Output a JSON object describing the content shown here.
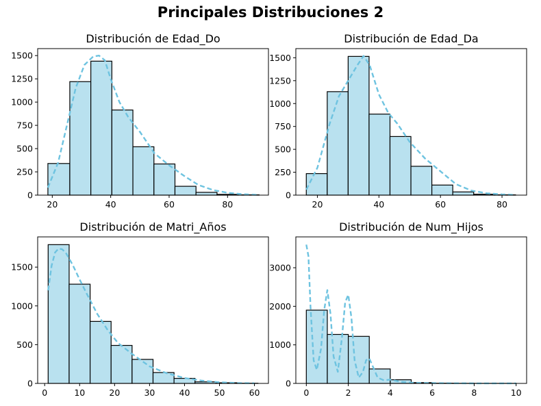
{
  "figure": {
    "title": "Principales Distribuciones 2"
  },
  "style": {
    "bar_fill": "#b9e1ef",
    "bar_edge": "#000000",
    "kde_color": "#6ec3e0"
  },
  "chart_data": [
    {
      "type": "bar",
      "title": "Distribución de Edad_Do",
      "xlabel": "",
      "ylabel": "",
      "bin_edges": [
        18.5,
        26.0,
        33.2,
        40.4,
        47.6,
        54.8,
        62.0,
        69.2,
        76.4,
        83.6,
        90.8
      ],
      "values": [
        340,
        1220,
        1440,
        915,
        520,
        335,
        95,
        30,
        8,
        3
      ],
      "xlim": [
        15,
        94
      ],
      "ylim": [
        0,
        1575
      ],
      "xticks": [
        20,
        40,
        60,
        80
      ],
      "yticks": [
        0,
        250,
        500,
        750,
        1000,
        1250,
        1500
      ],
      "kde": {
        "x": [
          18.5,
          22,
          25,
          28,
          31,
          34,
          36,
          38,
          40,
          43,
          46,
          50,
          55,
          60,
          65,
          70,
          75,
          80,
          85,
          90
        ],
        "y": [
          80,
          350,
          750,
          1150,
          1400,
          1490,
          1500,
          1450,
          1250,
          1000,
          840,
          680,
          450,
          320,
          210,
          110,
          55,
          25,
          10,
          3
        ]
      }
    },
    {
      "type": "bar",
      "title": "Distribución de Edad_Da",
      "xlabel": "",
      "ylabel": "",
      "bin_edges": [
        16.4,
        23.2,
        30.0,
        36.8,
        43.6,
        50.4,
        57.2,
        64.0,
        70.8,
        77.6,
        84.4
      ],
      "values": [
        235,
        1130,
        1515,
        885,
        640,
        315,
        110,
        35,
        10,
        3
      ],
      "xlim": [
        13,
        88
      ],
      "ylim": [
        0,
        1600
      ],
      "xticks": [
        20,
        40,
        60,
        80
      ],
      "yticks": [
        0,
        250,
        500,
        750,
        1000,
        1250,
        1500
      ],
      "kde": {
        "x": [
          16.4,
          20,
          24,
          27,
          30,
          33,
          35,
          37,
          40,
          43,
          46,
          50,
          55,
          60,
          65,
          70,
          75,
          80,
          84
        ],
        "y": [
          60,
          300,
          780,
          1080,
          1250,
          1420,
          1520,
          1420,
          1100,
          900,
          780,
          580,
          400,
          260,
          120,
          50,
          20,
          8,
          3
        ]
      }
    },
    {
      "type": "bar",
      "title": "Distribución de Matri_Años",
      "xlabel": "",
      "ylabel": "",
      "bin_edges": [
        1,
        7,
        13,
        19,
        25,
        31,
        37,
        43,
        49,
        55,
        61
      ],
      "values": [
        1790,
        1280,
        800,
        490,
        310,
        140,
        65,
        20,
        8,
        2
      ],
      "xlim": [
        -2,
        64
      ],
      "ylim": [
        0,
        1890
      ],
      "xticks": [
        0,
        10,
        20,
        30,
        40,
        50,
        60
      ],
      "yticks": [
        0,
        500,
        1000,
        1500
      ],
      "kde": {
        "x": [
          1,
          2,
          3,
          4,
          5,
          6,
          8,
          10,
          12,
          15,
          18,
          21,
          25,
          30,
          35,
          40,
          45,
          50,
          55,
          60
        ],
        "y": [
          1200,
          1520,
          1690,
          1740,
          1730,
          1690,
          1530,
          1340,
          1160,
          900,
          690,
          520,
          380,
          220,
          130,
          70,
          35,
          15,
          5,
          2
        ]
      }
    },
    {
      "type": "bar",
      "title": "Distribución de Num_Hijos",
      "xlabel": "",
      "ylabel": "",
      "bin_edges": [
        0,
        1,
        2,
        3,
        4,
        5,
        6,
        7,
        8,
        9,
        10
      ],
      "values": [
        1900,
        1270,
        1220,
        375,
        95,
        20,
        5,
        2,
        1,
        1
      ],
      "xlim": [
        -0.5,
        10.5
      ],
      "ylim": [
        0,
        3800
      ],
      "xticks": [
        0,
        2,
        4,
        6,
        8,
        10
      ],
      "yticks": [
        0,
        1000,
        2000,
        3000
      ],
      "kde": {
        "x": [
          0,
          0.1,
          0.2,
          0.35,
          0.5,
          0.7,
          0.85,
          1.0,
          1.15,
          1.3,
          1.5,
          1.7,
          1.85,
          2.0,
          2.15,
          2.3,
          2.5,
          2.7,
          2.85,
          3.0,
          3.2,
          3.4,
          3.7,
          4.0,
          4.5,
          5,
          6,
          7,
          8,
          9,
          10
        ],
        "y": [
          3600,
          3300,
          2000,
          600,
          350,
          900,
          1900,
          2420,
          1800,
          700,
          300,
          1200,
          2100,
          2300,
          1700,
          600,
          150,
          300,
          600,
          650,
          400,
          150,
          80,
          100,
          40,
          20,
          8,
          4,
          2,
          1,
          1
        ]
      }
    }
  ]
}
